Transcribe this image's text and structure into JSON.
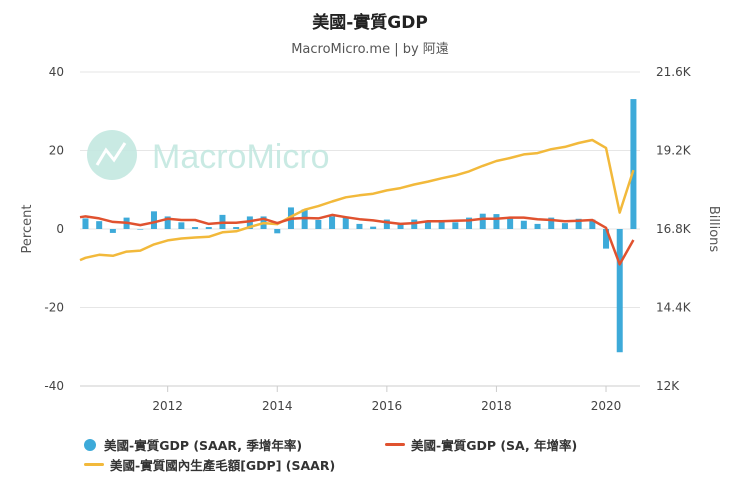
{
  "chart_data": {
    "type": "bar",
    "title": "美國-實質GDP",
    "subtitle": "MacroMicro.me | by 阿遠",
    "watermark": "MacroMicro",
    "ylabel_left": "Percent",
    "ylabel_right": "Billions",
    "xlim": [
      2010.4,
      2020.62
    ],
    "ylim_left": [
      -40,
      40
    ],
    "ylim_right": [
      12000,
      21600
    ],
    "left_ticks": [
      "40",
      "20",
      "0",
      "-20",
      "-40"
    ],
    "left_tick_values": [
      40,
      20,
      0,
      -20,
      -40
    ],
    "right_ticks": [
      "21.6K",
      "19.2K",
      "16.8K",
      "14.4K",
      "12K"
    ],
    "right_tick_values": [
      21600,
      19200,
      16800,
      14400,
      12000
    ],
    "x_ticks": [
      "2012",
      "2014",
      "2016",
      "2018",
      "2020"
    ],
    "x_tick_values": [
      2012,
      2014,
      2016,
      2018,
      2020
    ],
    "grid": true,
    "colors": {
      "bars": "#3daad9",
      "yoy": "#e0522f",
      "level": "#f2b93b",
      "grid": "#e6e6e6",
      "watermark": "#c4e8e1"
    },
    "series": [
      {
        "name": "美國-實質GDP (SAAR, 季增年率)",
        "type": "bar",
        "x": [
          2010.5,
          2010.75,
          2011.0,
          2011.25,
          2011.5,
          2011.75,
          2012.0,
          2012.25,
          2012.5,
          2012.75,
          2013.0,
          2013.25,
          2013.5,
          2013.75,
          2014.0,
          2014.25,
          2014.5,
          2014.75,
          2015.0,
          2015.25,
          2015.5,
          2015.75,
          2016.0,
          2016.25,
          2016.5,
          2016.75,
          2017.0,
          2017.25,
          2017.5,
          2017.75,
          2018.0,
          2018.25,
          2018.5,
          2018.75,
          2019.0,
          2019.25,
          2019.5,
          2019.75,
          2020.0,
          2020.25,
          2020.5
        ],
        "values": [
          2.7,
          2.0,
          -1.0,
          2.9,
          -0.1,
          4.5,
          3.2,
          1.7,
          0.5,
          0.5,
          3.6,
          0.5,
          3.2,
          3.2,
          -1.1,
          5.5,
          5.0,
          2.3,
          3.2,
          3.0,
          1.3,
          0.6,
          2.4,
          1.2,
          2.4,
          2.0,
          2.3,
          1.7,
          2.9,
          3.9,
          3.8,
          2.7,
          2.1,
          1.3,
          2.9,
          1.5,
          2.6,
          2.4,
          -5.0,
          -31.4,
          33.1
        ]
      },
      {
        "name": "美國-實質GDP (SA, 年增率)",
        "type": "line",
        "x": [
          2010.4,
          2010.5,
          2010.75,
          2011.0,
          2011.25,
          2011.5,
          2011.75,
          2012.0,
          2012.25,
          2012.5,
          2012.75,
          2013.0,
          2013.25,
          2013.5,
          2013.75,
          2014.0,
          2014.25,
          2014.5,
          2014.75,
          2015.0,
          2015.25,
          2015.5,
          2015.75,
          2016.0,
          2016.25,
          2016.5,
          2016.75,
          2017.0,
          2017.25,
          2017.5,
          2017.75,
          2018.0,
          2018.25,
          2018.5,
          2018.75,
          2019.0,
          2019.25,
          2019.5,
          2019.75,
          2020.0,
          2020.25,
          2020.5
        ],
        "values": [
          3.0,
          3.2,
          2.7,
          1.8,
          1.6,
          1.0,
          1.7,
          2.6,
          2.3,
          2.3,
          1.3,
          1.6,
          1.6,
          2.0,
          2.6,
          1.5,
          2.6,
          2.8,
          2.7,
          3.6,
          3.0,
          2.5,
          2.2,
          1.7,
          1.3,
          1.5,
          2.0,
          2.0,
          2.1,
          2.2,
          2.6,
          2.6,
          2.9,
          2.9,
          2.5,
          2.3,
          2.0,
          2.1,
          2.3,
          0.3,
          -9.0,
          -2.8
        ]
      },
      {
        "name": "美國-實質國內生產毛額[GDP] (SAAR)",
        "type": "line",
        "axis": "right",
        "x": [
          2010.4,
          2010.5,
          2010.75,
          2011.0,
          2011.25,
          2011.5,
          2011.75,
          2012.0,
          2012.25,
          2012.5,
          2012.75,
          2013.0,
          2013.25,
          2013.5,
          2013.75,
          2014.0,
          2014.25,
          2014.5,
          2014.75,
          2015.0,
          2015.25,
          2015.5,
          2015.75,
          2016.0,
          2016.25,
          2016.5,
          2016.75,
          2017.0,
          2017.25,
          2017.5,
          2017.75,
          2018.0,
          2018.25,
          2018.5,
          2018.75,
          2019.0,
          2019.25,
          2019.5,
          2019.75,
          2020.0,
          2020.25,
          2020.5
        ],
        "values": [
          15850,
          15920,
          16010,
          15980,
          16110,
          16140,
          16330,
          16450,
          16510,
          16540,
          16560,
          16700,
          16730,
          16860,
          16980,
          16950,
          17180,
          17390,
          17500,
          17640,
          17770,
          17830,
          17880,
          17980,
          18050,
          18160,
          18250,
          18350,
          18440,
          18560,
          18730,
          18880,
          18970,
          19080,
          19120,
          19240,
          19310,
          19430,
          19520,
          19280,
          17300,
          18600
        ]
      }
    ]
  }
}
